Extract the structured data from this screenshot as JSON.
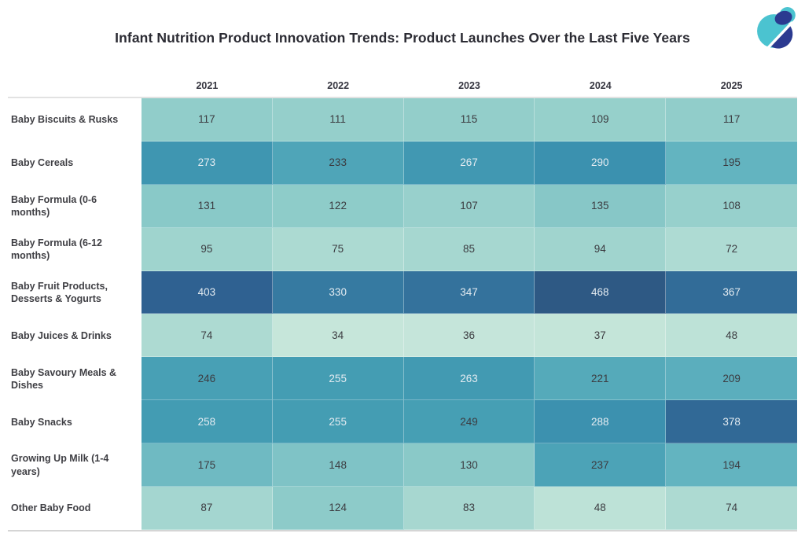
{
  "page": {
    "title": "Infant Nutrition Product Innovation Trends: Product Launches Over the Last Five Years",
    "logo_colors": {
      "teal": "#4bc3d0",
      "navy": "#2b3a90"
    }
  },
  "chart_data": {
    "type": "heatmap",
    "title": "Infant Nutrition Product Innovation Trends: Product Launches Over the Last Five Years",
    "columns": [
      "2021",
      "2022",
      "2023",
      "2024",
      "2025"
    ],
    "rows": [
      {
        "label": "Baby Biscuits & Rusks",
        "values": [
          117,
          111,
          115,
          109,
          117
        ]
      },
      {
        "label": "Baby Cereals",
        "values": [
          273,
          233,
          267,
          290,
          195
        ]
      },
      {
        "label": "Baby Formula (0-6 months)",
        "values": [
          131,
          122,
          107,
          135,
          108
        ]
      },
      {
        "label": "Baby Formula (6-12 months)",
        "values": [
          95,
          75,
          85,
          94,
          72
        ]
      },
      {
        "label": "Baby Fruit Products, Desserts & Yogurts",
        "values": [
          403,
          330,
          347,
          468,
          367
        ]
      },
      {
        "label": "Baby Juices & Drinks",
        "values": [
          74,
          34,
          36,
          37,
          48
        ]
      },
      {
        "label": "Baby Savoury Meals & Dishes",
        "values": [
          246,
          255,
          263,
          221,
          209
        ]
      },
      {
        "label": "Baby Snacks",
        "values": [
          258,
          255,
          249,
          288,
          378
        ]
      },
      {
        "label": "Growing Up Milk (1-4 years)",
        "values": [
          175,
          148,
          130,
          237,
          194
        ]
      },
      {
        "label": "Other Baby Food",
        "values": [
          87,
          124,
          83,
          48,
          74
        ]
      }
    ],
    "color_scale": {
      "domain": [
        34,
        468
      ],
      "stops": [
        {
          "t": 0.0,
          "color": "#c6e6da"
        },
        {
          "t": 0.2,
          "color": "#8fccc9"
        },
        {
          "t": 0.37,
          "color": "#63b4c0"
        },
        {
          "t": 0.5,
          "color": "#459eb4"
        },
        {
          "t": 0.6,
          "color": "#3a8fae"
        },
        {
          "t": 0.7,
          "color": "#35759e"
        },
        {
          "t": 0.85,
          "color": "#2f6191"
        },
        {
          "t": 1.0,
          "color": "#2e5984"
        }
      ],
      "light_text_threshold": 250,
      "dark_text": "#3c3c41",
      "light_text": "#e3ebf1"
    },
    "legend": false,
    "grid": false
  }
}
